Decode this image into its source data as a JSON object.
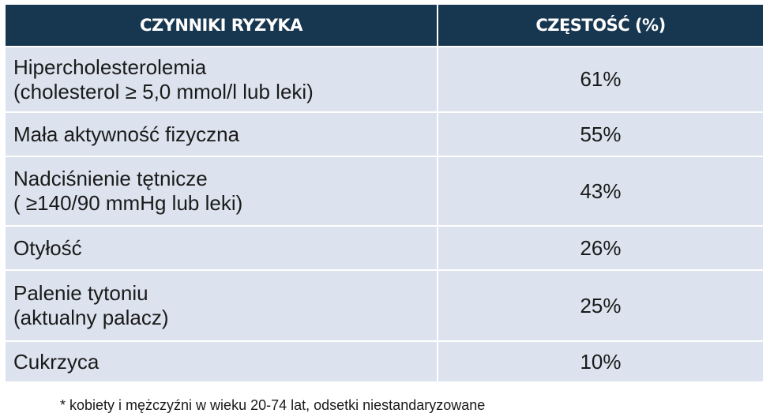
{
  "table": {
    "headers": {
      "factor": "CZYNNIKI RYZYKA",
      "frequency": "CZĘSTOŚĆ (%)"
    },
    "rows": [
      {
        "factor_line1": "Hipercholesterolemia",
        "factor_line2": "(cholesterol ≥ 5,0 mmol/l lub leki)",
        "frequency": "61%"
      },
      {
        "factor_line1": "Mała aktywność fizyczna",
        "factor_line2": "",
        "frequency": "55%"
      },
      {
        "factor_line1": "Nadciśnienie tętnicze",
        "factor_line2": "( ≥140/90 mmHg lub leki)",
        "frequency": "43%"
      },
      {
        "factor_line1": "Otyłość",
        "factor_line2": "",
        "frequency": "26%"
      },
      {
        "factor_line1": "Palenie tytoniu",
        "factor_line2": "(aktualny palacz)",
        "frequency": "25%"
      },
      {
        "factor_line1": "Cukrzyca",
        "factor_line2": "",
        "frequency": "10%"
      }
    ]
  },
  "footnote": "* kobiety i mężczyźni w wieku 20-74 lat, odsetki niestandaryzowane",
  "colors": {
    "header_bg": "#17364f",
    "row_bg": "#dce3ee"
  }
}
